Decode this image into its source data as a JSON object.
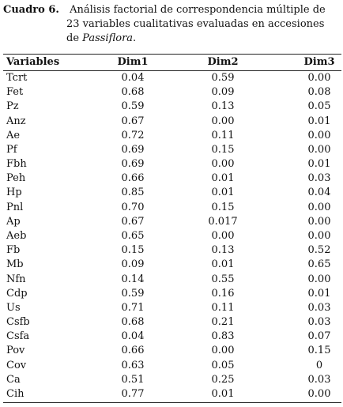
{
  "caption": {
    "label": "Cuadro 6.",
    "text": "Análisis factorial de correspondencia múltiple de 23 variables cualitativas evaluadas en accesiones de",
    "italic": "Passiflora",
    "end": "."
  },
  "table": {
    "header": [
      "Variables",
      "Dim1",
      "Dim2",
      "Dim3"
    ],
    "rows": [
      [
        "Tcrt",
        "0.04",
        "0.59",
        "0.00"
      ],
      [
        "Fet",
        "0.68",
        "0.09",
        "0.08"
      ],
      [
        "Pz",
        "0.59",
        "0.13",
        "0.05"
      ],
      [
        "Anz",
        "0.67",
        "0.00",
        "0.01"
      ],
      [
        "Ae",
        "0.72",
        "0.11",
        "0.00"
      ],
      [
        "Pf",
        "0.69",
        "0.15",
        "0.00"
      ],
      [
        "Fbh",
        "0.69",
        "0.00",
        "0.01"
      ],
      [
        "Peh",
        "0.66",
        "0.01",
        "0.03"
      ],
      [
        "Hp",
        "0.85",
        "0.01",
        "0.04"
      ],
      [
        "Pnl",
        "0.70",
        "0.15",
        "0.00"
      ],
      [
        "Ap",
        "0.67",
        "0.017",
        "0.00"
      ],
      [
        "Aeb",
        "0.65",
        "0.00",
        "0.00"
      ],
      [
        "Fb",
        "0.15",
        "0.13",
        "0.52"
      ],
      [
        "Mb",
        "0.09",
        "0.01",
        "0.65"
      ],
      [
        "Nfn",
        "0.14",
        "0.55",
        "0.00"
      ],
      [
        "Cdp",
        "0.59",
        "0.16",
        "0.01"
      ],
      [
        "Us",
        "0.71",
        "0.11",
        "0.03"
      ],
      [
        "Csfb",
        "0.68",
        "0.21",
        "0.03"
      ],
      [
        "Csfa",
        "0.04",
        "0.83",
        "0.07"
      ],
      [
        "Pov",
        "0.66",
        "0.00",
        "0.15"
      ],
      [
        "Cov",
        "0.63",
        "0.05",
        "0"
      ],
      [
        "Ca",
        "0.51",
        "0.25",
        "0.03"
      ],
      [
        "Cih",
        "0.77",
        "0.01",
        "0.00"
      ]
    ]
  }
}
